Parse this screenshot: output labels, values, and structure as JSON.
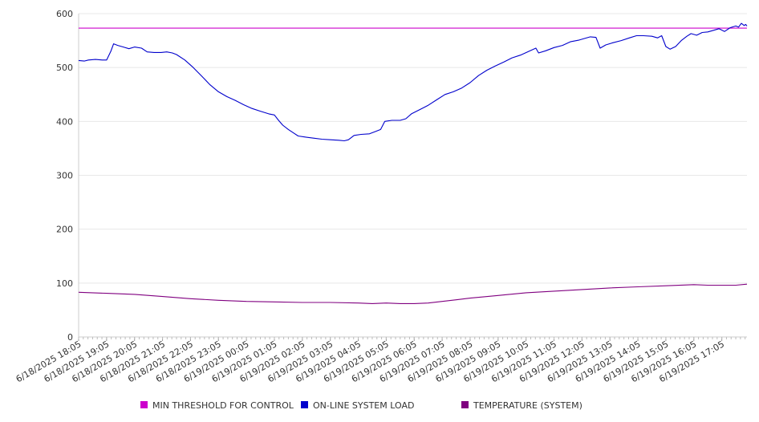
{
  "chart_data": {
    "type": "line",
    "title": "",
    "xlabel": "",
    "ylabel": "",
    "ylim": [
      0,
      600
    ],
    "y_ticks": [
      0,
      100,
      200,
      300,
      400,
      500,
      600
    ],
    "grid": true,
    "legend_position": "bottom",
    "x_tick_labels": [
      "6/18/2025 18:05",
      "6/18/2025 19:05",
      "6/18/2025 20:05",
      "6/18/2025 21:05",
      "6/18/2025 22:05",
      "6/18/2025 23:05",
      "6/19/2025 00:05",
      "6/19/2025 01:05",
      "6/19/2025 02:05",
      "6/19/2025 03:05",
      "6/19/2025 04:05",
      "6/19/2025 05:05",
      "6/19/2025 06:05",
      "6/19/2025 07:05",
      "6/19/2025 08:05",
      "6/19/2025 09:05",
      "6/19/2025 10:05",
      "6/19/2025 11:05",
      "6/19/2025 12:05",
      "6/19/2025 13:05",
      "6/19/2025 14:05",
      "6/19/2025 15:05",
      "6/19/2025 16:05",
      "6/19/2025 17:05"
    ],
    "series": [
      {
        "name": "MIN THRESHOLD FOR CONTROL",
        "color": "#cc00cc",
        "points": [
          [
            0,
            573
          ],
          [
            23.9,
            573
          ]
        ]
      },
      {
        "name": "ON-LINE SYSTEM LOAD",
        "color": "#0000cc",
        "points": [
          [
            0,
            513
          ],
          [
            0.2,
            512
          ],
          [
            0.35,
            514
          ],
          [
            0.6,
            515
          ],
          [
            0.85,
            514
          ],
          [
            1.0,
            514
          ],
          [
            1.15,
            530
          ],
          [
            1.25,
            544
          ],
          [
            1.4,
            541
          ],
          [
            1.6,
            538
          ],
          [
            1.8,
            535
          ],
          [
            2.0,
            538
          ],
          [
            2.25,
            536
          ],
          [
            2.45,
            529
          ],
          [
            2.7,
            528
          ],
          [
            2.95,
            528
          ],
          [
            3.15,
            529
          ],
          [
            3.35,
            527
          ],
          [
            3.5,
            524
          ],
          [
            3.8,
            514
          ],
          [
            4.1,
            500
          ],
          [
            4.4,
            484
          ],
          [
            4.7,
            468
          ],
          [
            5.0,
            455
          ],
          [
            5.3,
            446
          ],
          [
            5.6,
            439
          ],
          [
            5.9,
            431
          ],
          [
            6.2,
            424
          ],
          [
            6.5,
            419
          ],
          [
            6.8,
            414
          ],
          [
            7.0,
            412
          ],
          [
            7.15,
            402
          ],
          [
            7.3,
            393
          ],
          [
            7.5,
            385
          ],
          [
            7.7,
            378
          ],
          [
            7.85,
            373
          ],
          [
            8.1,
            371
          ],
          [
            8.4,
            369
          ],
          [
            8.7,
            367
          ],
          [
            9.0,
            366
          ],
          [
            9.3,
            365
          ],
          [
            9.5,
            364
          ],
          [
            9.65,
            366
          ],
          [
            9.85,
            374
          ],
          [
            10.1,
            376
          ],
          [
            10.4,
            377
          ],
          [
            10.6,
            381
          ],
          [
            10.8,
            385
          ],
          [
            10.95,
            400
          ],
          [
            11.2,
            402
          ],
          [
            11.5,
            402
          ],
          [
            11.7,
            405
          ],
          [
            11.9,
            414
          ],
          [
            12.2,
            422
          ],
          [
            12.5,
            430
          ],
          [
            12.8,
            440
          ],
          [
            13.1,
            450
          ],
          [
            13.4,
            455
          ],
          [
            13.7,
            462
          ],
          [
            14.0,
            472
          ],
          [
            14.3,
            485
          ],
          [
            14.6,
            495
          ],
          [
            14.9,
            503
          ],
          [
            15.2,
            510
          ],
          [
            15.5,
            518
          ],
          [
            15.8,
            523
          ],
          [
            16.1,
            530
          ],
          [
            16.35,
            536
          ],
          [
            16.45,
            527
          ],
          [
            16.7,
            531
          ],
          [
            17.0,
            537
          ],
          [
            17.3,
            541
          ],
          [
            17.6,
            548
          ],
          [
            17.9,
            551
          ],
          [
            18.1,
            554
          ],
          [
            18.3,
            557
          ],
          [
            18.5,
            556
          ],
          [
            18.65,
            536
          ],
          [
            18.85,
            542
          ],
          [
            19.1,
            546
          ],
          [
            19.4,
            550
          ],
          [
            19.7,
            555
          ],
          [
            19.95,
            559
          ],
          [
            20.2,
            559
          ],
          [
            20.5,
            558
          ],
          [
            20.7,
            555
          ],
          [
            20.85,
            559
          ],
          [
            21.0,
            539
          ],
          [
            21.15,
            534
          ],
          [
            21.35,
            539
          ],
          [
            21.55,
            550
          ],
          [
            21.75,
            558
          ],
          [
            21.9,
            563
          ],
          [
            22.1,
            560
          ],
          [
            22.3,
            565
          ],
          [
            22.5,
            566
          ],
          [
            22.7,
            569
          ],
          [
            22.9,
            572
          ],
          [
            23.1,
            567
          ],
          [
            23.3,
            574
          ],
          [
            23.5,
            577
          ],
          [
            23.6,
            575
          ],
          [
            23.7,
            582
          ],
          [
            23.8,
            578
          ],
          [
            23.85,
            580
          ],
          [
            23.9,
            577
          ]
        ]
      },
      {
        "name": "TEMPERATURE (SYSTEM)",
        "color": "#800080",
        "points": [
          [
            0,
            83
          ],
          [
            1,
            81
          ],
          [
            2,
            79
          ],
          [
            3,
            75
          ],
          [
            4,
            71
          ],
          [
            5,
            68
          ],
          [
            6,
            66
          ],
          [
            7,
            65
          ],
          [
            8,
            64
          ],
          [
            9,
            64
          ],
          [
            10,
            63
          ],
          [
            10.5,
            62
          ],
          [
            11,
            63
          ],
          [
            11.5,
            62
          ],
          [
            12,
            62
          ],
          [
            12.5,
            63
          ],
          [
            13,
            66
          ],
          [
            13.5,
            69
          ],
          [
            14,
            72
          ],
          [
            15,
            77
          ],
          [
            16,
            82
          ],
          [
            17,
            85
          ],
          [
            18,
            88
          ],
          [
            19,
            91
          ],
          [
            20,
            93
          ],
          [
            21,
            95
          ],
          [
            22,
            97
          ],
          [
            22.5,
            96
          ],
          [
            23,
            96
          ],
          [
            23.5,
            96
          ],
          [
            23.9,
            98
          ]
        ]
      }
    ]
  }
}
